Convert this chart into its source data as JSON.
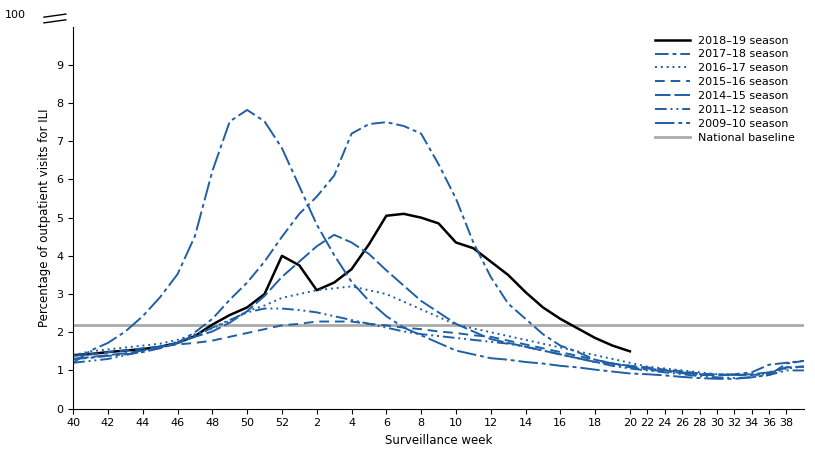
{
  "xlabel": "Surveillance week",
  "ylabel": "Percentage of outpatient visits for ILI",
  "ylim": [
    0,
    10
  ],
  "yticks": [
    0,
    1,
    2,
    3,
    4,
    5,
    6,
    7,
    8,
    9
  ],
  "national_baseline": 2.2,
  "baseline_color": "#aaaaaa",
  "blue_color": "#1f5fa6",
  "black_color": "#000000",
  "weeks": [
    40,
    41,
    42,
    43,
    44,
    45,
    46,
    47,
    48,
    49,
    50,
    51,
    52,
    1,
    2,
    3,
    4,
    5,
    6,
    7,
    8,
    9,
    10,
    11,
    12,
    13,
    14,
    15,
    16,
    17,
    18,
    19,
    20,
    22,
    24,
    26,
    28,
    30,
    32,
    34,
    36,
    38,
    39
  ],
  "tick_weeks": [
    40,
    42,
    44,
    46,
    48,
    50,
    52,
    2,
    4,
    6,
    8,
    10,
    12,
    14,
    16,
    18,
    20,
    22,
    24,
    26,
    28,
    30,
    32,
    34,
    36,
    38
  ],
  "season_2018_19": [
    1.4,
    1.43,
    1.48,
    1.52,
    1.56,
    1.62,
    1.72,
    1.9,
    2.2,
    2.45,
    2.65,
    3.0,
    4.0,
    3.75,
    3.1,
    3.3,
    3.65,
    4.3,
    5.05,
    5.1,
    5.0,
    4.85,
    4.35,
    4.2,
    3.85,
    3.5,
    3.05,
    2.65,
    2.35,
    2.1,
    1.85,
    1.65,
    1.5,
    null,
    null,
    null,
    null,
    null,
    null,
    null,
    null,
    null,
    null
  ],
  "season_2017_18": [
    1.3,
    1.33,
    1.38,
    1.42,
    1.48,
    1.58,
    1.72,
    2.0,
    2.35,
    2.85,
    3.3,
    3.85,
    4.5,
    5.1,
    5.55,
    6.1,
    7.2,
    7.45,
    7.5,
    7.4,
    7.2,
    6.4,
    5.5,
    4.35,
    3.45,
    2.75,
    2.35,
    1.95,
    1.65,
    1.48,
    1.28,
    1.18,
    1.08,
    1.02,
    0.98,
    0.93,
    0.88,
    0.88,
    0.9,
    0.95,
    1.15,
    1.2,
    1.25
  ],
  "season_2016_17": [
    1.4,
    1.5,
    1.55,
    1.6,
    1.65,
    1.7,
    1.8,
    1.95,
    2.1,
    2.3,
    2.55,
    2.7,
    2.9,
    3.0,
    3.1,
    3.15,
    3.2,
    3.1,
    3.0,
    2.8,
    2.6,
    2.4,
    2.2,
    2.1,
    2.0,
    1.9,
    1.8,
    1.7,
    1.6,
    1.5,
    1.4,
    1.3,
    1.2,
    1.1,
    1.05,
    1.0,
    0.95,
    0.9,
    0.88,
    0.88,
    0.9,
    1.05,
    1.1
  ],
  "season_2015_16": [
    1.38,
    1.42,
    1.48,
    1.52,
    1.58,
    1.62,
    1.68,
    1.72,
    1.78,
    1.88,
    1.98,
    2.08,
    2.18,
    2.22,
    2.28,
    2.28,
    2.28,
    2.22,
    2.18,
    2.12,
    2.08,
    2.02,
    1.98,
    1.92,
    1.88,
    1.78,
    1.68,
    1.58,
    1.48,
    1.38,
    1.28,
    1.18,
    1.12,
    1.08,
    1.02,
    0.98,
    0.92,
    0.88,
    0.88,
    0.88,
    0.92,
    1.08,
    1.1
  ],
  "season_2014_15": [
    1.3,
    1.35,
    1.4,
    1.45,
    1.52,
    1.62,
    1.72,
    1.88,
    2.02,
    2.25,
    2.55,
    2.95,
    3.45,
    3.85,
    4.25,
    4.55,
    4.35,
    4.05,
    3.62,
    3.22,
    2.82,
    2.52,
    2.22,
    2.02,
    1.82,
    1.72,
    1.62,
    1.52,
    1.42,
    1.32,
    1.22,
    1.18,
    1.12,
    1.05,
    1.0,
    0.95,
    0.9,
    0.9,
    0.88,
    0.9,
    0.95,
    1.08,
    1.1
  ],
  "season_2011_12": [
    1.2,
    1.25,
    1.3,
    1.4,
    1.5,
    1.6,
    1.75,
    1.9,
    2.12,
    2.32,
    2.52,
    2.62,
    2.62,
    2.58,
    2.52,
    2.42,
    2.32,
    2.22,
    2.12,
    2.02,
    1.95,
    1.9,
    1.85,
    1.8,
    1.75,
    1.7,
    1.62,
    1.52,
    1.42,
    1.32,
    1.22,
    1.12,
    1.05,
    1.0,
    0.95,
    0.9,
    0.85,
    0.82,
    0.8,
    0.82,
    0.88,
    1.0,
    1.0
  ],
  "season_2009_10": [
    1.2,
    1.52,
    1.72,
    2.02,
    2.42,
    2.92,
    3.52,
    4.52,
    6.22,
    7.52,
    7.82,
    7.52,
    6.82,
    5.82,
    4.82,
    4.02,
    3.32,
    2.82,
    2.42,
    2.12,
    1.92,
    1.72,
    1.52,
    1.42,
    1.32,
    1.28,
    1.22,
    1.18,
    1.12,
    1.08,
    1.02,
    0.97,
    0.92,
    0.9,
    0.87,
    0.83,
    0.8,
    0.78,
    0.78,
    0.82,
    0.88,
    1.18,
    1.25
  ]
}
